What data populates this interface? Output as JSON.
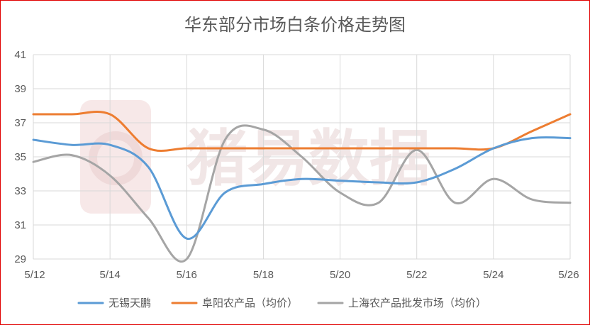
{
  "chart_data": {
    "type": "line",
    "title": "华东部分市场白条价格走势图",
    "xlabel": "",
    "ylabel": "",
    "x": [
      "5/12",
      "5/13",
      "5/14",
      "5/15",
      "5/16",
      "5/17",
      "5/18",
      "5/19",
      "5/20",
      "5/21",
      "5/22",
      "5/23",
      "5/24",
      "5/25",
      "5/26"
    ],
    "x_tick_labels": [
      "5/12",
      "5/14",
      "5/16",
      "5/18",
      "5/20",
      "5/22",
      "5/24",
      "5/26"
    ],
    "ylim": [
      29,
      41
    ],
    "y_ticks": [
      29,
      31,
      33,
      35,
      37,
      39,
      41
    ],
    "grid": true,
    "legend_position": "bottom",
    "series": [
      {
        "name": "无锡天鹏",
        "color": "#5b9bd5",
        "values": [
          36.0,
          35.7,
          35.7,
          34.4,
          30.2,
          32.9,
          33.4,
          33.7,
          33.6,
          33.5,
          33.5,
          34.3,
          35.5,
          36.1,
          36.1
        ]
      },
      {
        "name": "阜阳农产品（均价）",
        "color": "#ed7d31",
        "values": [
          37.5,
          37.5,
          37.5,
          35.5,
          35.5,
          35.5,
          35.5,
          35.5,
          35.5,
          35.5,
          35.5,
          35.5,
          35.5,
          36.5,
          37.5
        ]
      },
      {
        "name": "上海农产品批发市场（均价）",
        "color": "#a5a5a5",
        "values": [
          34.7,
          35.1,
          33.9,
          31.4,
          29.0,
          36.0,
          36.6,
          35.0,
          32.9,
          32.3,
          35.4,
          32.3,
          33.7,
          32.5,
          32.3
        ]
      }
    ]
  },
  "watermark": {
    "text": "猪易数据",
    "color": "#f1e6e6"
  }
}
